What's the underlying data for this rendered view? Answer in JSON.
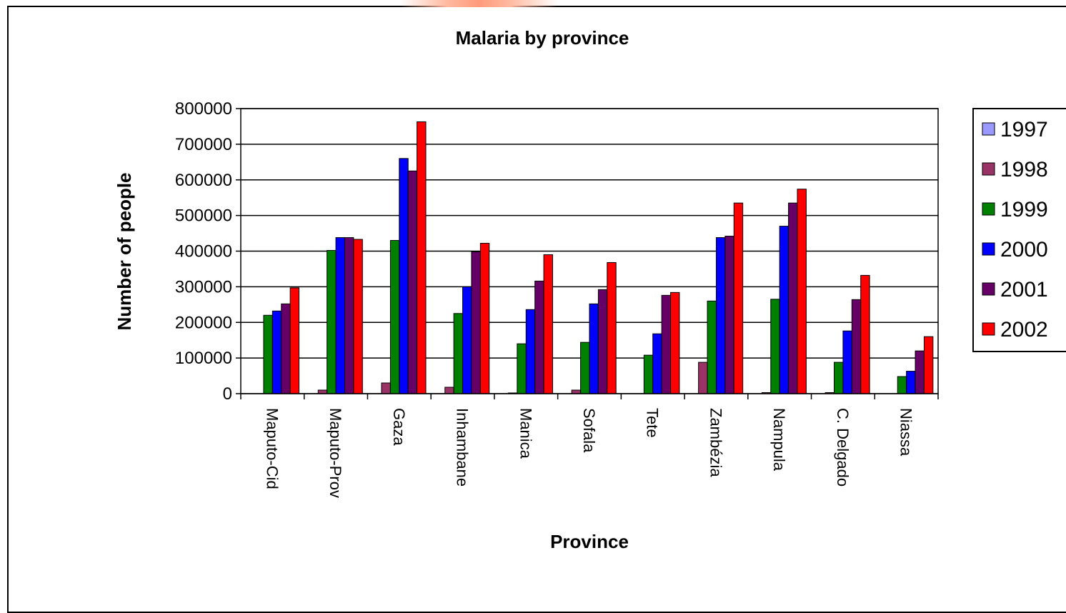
{
  "chart_data": {
    "type": "bar",
    "title": "Malaria by province",
    "xlabel": "Province",
    "ylabel": "Number of people",
    "ylim": [
      0,
      800000
    ],
    "yticks": [
      "0",
      "100000",
      "200000",
      "300000",
      "400000",
      "500000",
      "600000",
      "700000",
      "800000"
    ],
    "grid": true,
    "legend_position": "right",
    "categories": [
      "Maputo-Cid",
      "Maputo-Prov",
      "Gaza",
      "Inhambane",
      "Manica",
      "Sofala",
      "Tete",
      "Zambézia",
      "Nampula",
      "C. Delgado",
      "Niassa"
    ],
    "series": [
      {
        "name": "1997",
        "color": "#9999ff",
        "values": [
          0,
          0,
          0,
          0,
          0,
          0,
          0,
          0,
          0,
          0,
          0
        ]
      },
      {
        "name": "1998",
        "color": "#993366",
        "values": [
          0,
          10000,
          30000,
          18000,
          2000,
          10000,
          0,
          88000,
          3000,
          3000,
          0
        ]
      },
      {
        "name": "1999",
        "color": "#008000",
        "values": [
          220000,
          402000,
          430000,
          225000,
          140000,
          144000,
          108000,
          260000,
          265000,
          88000,
          48000
        ]
      },
      {
        "name": "2000",
        "color": "#0000ff",
        "values": [
          232000,
          438000,
          660000,
          300000,
          236000,
          252000,
          168000,
          438000,
          470000,
          176000,
          63000
        ]
      },
      {
        "name": "2001",
        "color": "#660066",
        "values": [
          252000,
          438000,
          625000,
          398000,
          316000,
          292000,
          276000,
          442000,
          535000,
          264000,
          120000
        ]
      },
      {
        "name": "2002",
        "color": "#ff0000",
        "values": [
          297000,
          433000,
          763000,
          422000,
          390000,
          368000,
          284000,
          535000,
          574000,
          332000,
          160000
        ]
      }
    ]
  }
}
